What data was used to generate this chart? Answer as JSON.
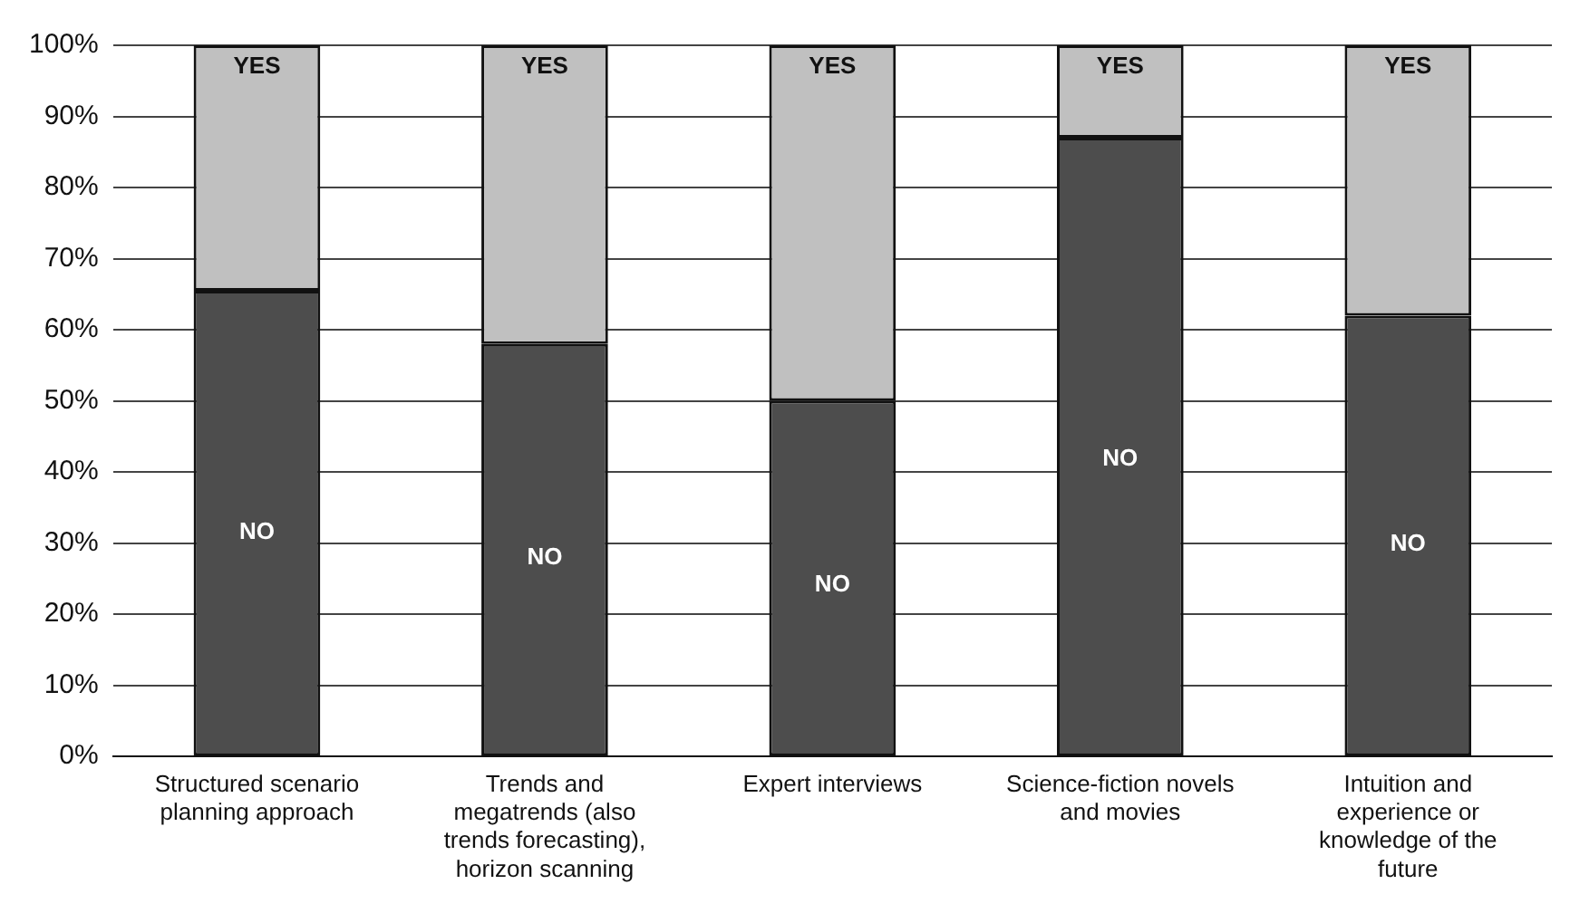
{
  "chart_data": {
    "type": "bar",
    "stacked": true,
    "categories": [
      "Structured scenario planning approach",
      "Trends and megatrends (also trends forecasting), horizon scanning",
      "Expert interviews",
      "Science-fiction novels and movies",
      "Intuition and experience or knowledge of the future"
    ],
    "series": [
      {
        "name": "NO",
        "color": "#4d4d4d",
        "values": [
          65.5,
          58,
          50,
          87,
          62
        ]
      },
      {
        "name": "YES",
        "color": "#c0c0c0",
        "values": [
          34.5,
          42,
          50,
          13,
          38
        ]
      }
    ],
    "ylim": [
      0,
      100
    ],
    "yticks": [
      {
        "value": 0,
        "label": "0%"
      },
      {
        "value": 10,
        "label": "10%"
      },
      {
        "value": 20,
        "label": "20%"
      },
      {
        "value": 30,
        "label": "30%"
      },
      {
        "value": 40,
        "label": "40%"
      },
      {
        "value": 50,
        "label": "50%"
      },
      {
        "value": 60,
        "label": "60%"
      },
      {
        "value": 70,
        "label": "70%"
      },
      {
        "value": 80,
        "label": "80%"
      },
      {
        "value": 90,
        "label": "90%"
      },
      {
        "value": 100,
        "label": "100%"
      }
    ],
    "grid": "y",
    "legend": false
  }
}
